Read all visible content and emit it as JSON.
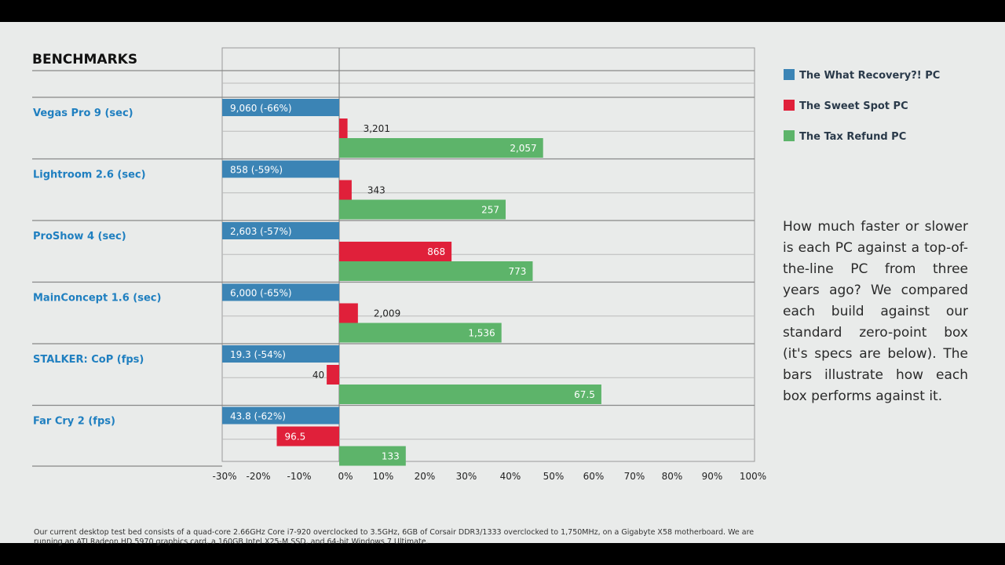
{
  "chart_data": {
    "type": "bar",
    "title": "BENCHMARKS",
    "orientation": "horizontal",
    "xlim": [
      -30,
      100
    ],
    "x_ticks": [
      "-30%",
      "-20%",
      "-10%",
      "0%",
      "10%",
      "20%",
      "30%",
      "40%",
      "50%",
      "60%",
      "70%",
      "80%",
      "90%",
      "100%"
    ],
    "grid": true,
    "legend_position": "right",
    "categories": [
      "Vegas Pro 9 (sec)",
      "Lightroom 2.6 (sec)",
      "ProShow 4 (sec)",
      "MainConcept 1.6 (sec)",
      "STALKER: CoP (fps)",
      "Far Cry 2 (fps)"
    ],
    "series": [
      {
        "name": "The What Recovery?! PC",
        "color": "#3b84b5",
        "labels": [
          "9,060 (-66%)",
          "858 (-59%)",
          "2,603 (-57%)",
          "6,000 (-65%)",
          "19.3 (-54%)",
          "43.8 (-62%)"
        ]
      },
      {
        "name": "The Sweet Spot PC",
        "color": "#e0203a",
        "values": [
          2,
          3,
          27,
          4.5,
          -3,
          -15
        ],
        "labels": [
          "3,201",
          "343",
          "868",
          "2,009",
          "40",
          "96.5"
        ]
      },
      {
        "name": "The Tax Refund PC",
        "color": "#5db46a",
        "values": [
          49,
          40,
          46.5,
          39,
          63,
          16
        ],
        "labels": [
          "2,057",
          "257",
          "773",
          "1,536",
          "67.5",
          "133"
        ]
      }
    ]
  },
  "description": "How much faster or slower is each PC against a top-of-the-line PC from three years ago? We compared each build against our standard zero-point box (it's specs are below). The bars illustrate how each box performs against it.",
  "footnote": "Our current desktop test bed consists of a quad-core 2.66GHz Core i7-920 overclocked to 3.5GHz, 6GB of Corsair DDR3/1333 overclocked to 1,750MHz, on a Gigabyte X58 motherboard. We are running an ATI Radeon HD 5970 graphics card, a 160GB Intel X25-M SSD, and 64-bit Windows 7 Ultimate."
}
